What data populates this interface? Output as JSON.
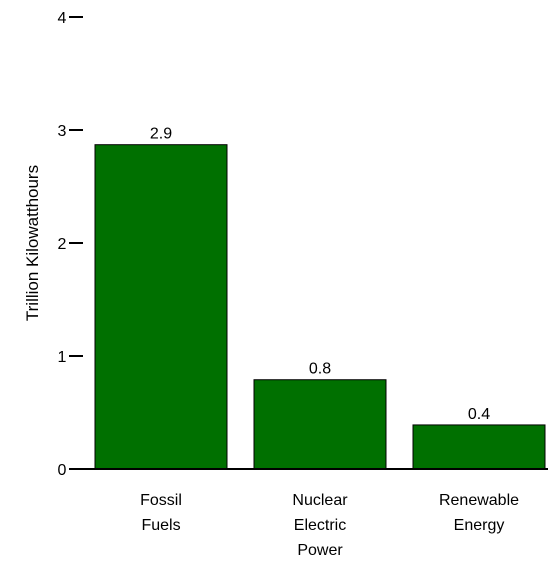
{
  "chart_data": {
    "type": "bar",
    "title": "",
    "xlabel": "",
    "ylabel": "Trillion Kilowatthours",
    "ylim": [
      0,
      4
    ],
    "yticks": [
      0,
      1,
      2,
      3,
      4
    ],
    "grid": false,
    "categories": [
      [
        "Fossil",
        "Fuels"
      ],
      [
        "Nuclear",
        "Electric",
        "Power"
      ],
      [
        "Renewable",
        "Energy"
      ]
    ],
    "values": [
      2.87,
      0.79,
      0.39
    ],
    "data_labels": [
      "2.9",
      "0.8",
      "0.4"
    ],
    "bar_color": "#007000",
    "bar_edge_color": "#000000"
  }
}
